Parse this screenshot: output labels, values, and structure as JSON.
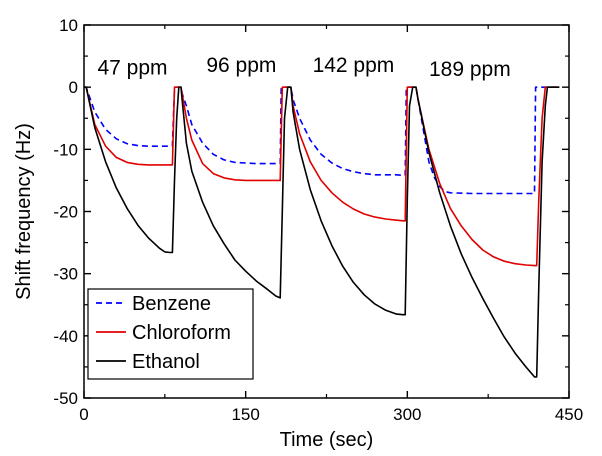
{
  "chart_data": {
    "type": "line",
    "xlabel": "Time (sec)",
    "ylabel": "Shift frequency (Hz)",
    "xlim": [
      0,
      450
    ],
    "ylim": [
      -50,
      10
    ],
    "x_ticks": [
      0,
      150,
      300,
      450
    ],
    "x_minor_ticks": [
      75,
      225,
      375
    ],
    "y_ticks": [
      10,
      0,
      -10,
      -20,
      -30,
      -40,
      -50
    ],
    "y_minor_ticks": [
      5,
      -5,
      -15,
      -25,
      -35,
      -45
    ],
    "grid": false,
    "legend_position": "bottom-left",
    "annotations": [
      {
        "text": "47 ppm",
        "x": 45,
        "y": 2
      },
      {
        "text": "96 ppm",
        "x": 146,
        "y": 2.4
      },
      {
        "text": "142 ppm",
        "x": 250,
        "y": 2.4
      },
      {
        "text": "189 ppm",
        "x": 358,
        "y": 1.8
      }
    ],
    "series": [
      {
        "name": "Benzene",
        "color": "#0000ff",
        "dash": "dashed",
        "points": [
          [
            0,
            0
          ],
          [
            2,
            0
          ],
          [
            10,
            -4
          ],
          [
            20,
            -6.8
          ],
          [
            30,
            -8.3
          ],
          [
            40,
            -9.1
          ],
          [
            50,
            -9.4
          ],
          [
            60,
            -9.5
          ],
          [
            70,
            -9.5
          ],
          [
            80,
            -9.5
          ],
          [
            82,
            -9.5
          ],
          [
            84,
            0
          ],
          [
            88,
            0
          ],
          [
            90,
            0
          ],
          [
            91,
            -1
          ],
          [
            95,
            -3
          ],
          [
            100,
            -6
          ],
          [
            110,
            -9
          ],
          [
            120,
            -10.8
          ],
          [
            130,
            -11.7
          ],
          [
            140,
            -12.1
          ],
          [
            150,
            -12.2
          ],
          [
            160,
            -12.3
          ],
          [
            170,
            -12.3
          ],
          [
            180,
            -12.3
          ],
          [
            182,
            -12.3
          ],
          [
            183,
            0
          ],
          [
            189,
            0
          ],
          [
            190,
            0
          ],
          [
            192,
            0
          ],
          [
            194,
            -2
          ],
          [
            200,
            -5
          ],
          [
            210,
            -8.5
          ],
          [
            220,
            -10.8
          ],
          [
            230,
            -12.2
          ],
          [
            240,
            -13.1
          ],
          [
            250,
            -13.6
          ],
          [
            260,
            -13.9
          ],
          [
            270,
            -14.1
          ],
          [
            280,
            -14.1
          ],
          [
            290,
            -14.1
          ],
          [
            296,
            -14.2
          ],
          [
            298,
            -14.2
          ],
          [
            299,
            0
          ],
          [
            305,
            0
          ],
          [
            308,
            0
          ],
          [
            310,
            -2
          ],
          [
            315,
            -7
          ],
          [
            320,
            -12
          ],
          [
            325,
            -14.5
          ],
          [
            330,
            -16
          ],
          [
            335,
            -16.8
          ],
          [
            340,
            -17
          ],
          [
            360,
            -17.1
          ],
          [
            380,
            -17.1
          ],
          [
            400,
            -17.1
          ],
          [
            415,
            -17.1
          ],
          [
            418,
            -17.1
          ],
          [
            419,
            0
          ],
          [
            425,
            0
          ],
          [
            436,
            0
          ],
          [
            441,
            0
          ]
        ]
      },
      {
        "name": "Chloroform",
        "color": "#e00000",
        "dash": "solid",
        "points": [
          [
            0,
            0
          ],
          [
            2,
            0
          ],
          [
            10,
            -6
          ],
          [
            20,
            -9.5
          ],
          [
            30,
            -11.3
          ],
          [
            40,
            -12.1
          ],
          [
            50,
            -12.4
          ],
          [
            60,
            -12.5
          ],
          [
            70,
            -12.5
          ],
          [
            80,
            -12.5
          ],
          [
            82,
            -12.5
          ],
          [
            84,
            0
          ],
          [
            88,
            0
          ],
          [
            90,
            0
          ],
          [
            91,
            -1
          ],
          [
            95,
            -5
          ],
          [
            100,
            -8.5
          ],
          [
            110,
            -12.3
          ],
          [
            120,
            -13.9
          ],
          [
            130,
            -14.6
          ],
          [
            140,
            -14.9
          ],
          [
            150,
            -15
          ],
          [
            160,
            -15
          ],
          [
            170,
            -15
          ],
          [
            180,
            -15
          ],
          [
            182,
            -15
          ],
          [
            184,
            0
          ],
          [
            189,
            0
          ],
          [
            190,
            0
          ],
          [
            192,
            0
          ],
          [
            194,
            -3
          ],
          [
            200,
            -7.5
          ],
          [
            210,
            -12
          ],
          [
            220,
            -15
          ],
          [
            230,
            -17
          ],
          [
            240,
            -18.5
          ],
          [
            250,
            -19.6
          ],
          [
            260,
            -20.4
          ],
          [
            270,
            -20.9
          ],
          [
            280,
            -21.2
          ],
          [
            290,
            -21.4
          ],
          [
            296,
            -21.5
          ],
          [
            298,
            -21.5
          ],
          [
            300,
            0
          ],
          [
            305,
            0
          ],
          [
            308,
            0
          ],
          [
            310,
            -2
          ],
          [
            320,
            -10
          ],
          [
            330,
            -15.5
          ],
          [
            340,
            -19.5
          ],
          [
            350,
            -22.3
          ],
          [
            360,
            -24.5
          ],
          [
            370,
            -26.2
          ],
          [
            380,
            -27.3
          ],
          [
            390,
            -28
          ],
          [
            400,
            -28.4
          ],
          [
            410,
            -28.6
          ],
          [
            418,
            -28.7
          ],
          [
            420,
            -28.7
          ],
          [
            422,
            -18
          ],
          [
            425,
            -5
          ],
          [
            428,
            0
          ],
          [
            436,
            0
          ],
          [
            441,
            0
          ]
        ]
      },
      {
        "name": "Ethanol",
        "color": "#000000",
        "dash": "solid",
        "points": [
          [
            0,
            0
          ],
          [
            2,
            0
          ],
          [
            10,
            -6.5
          ],
          [
            20,
            -12
          ],
          [
            30,
            -16.2
          ],
          [
            40,
            -19.5
          ],
          [
            50,
            -22.2
          ],
          [
            60,
            -24.3
          ],
          [
            70,
            -25.9
          ],
          [
            75,
            -26.5
          ],
          [
            80,
            -26.6
          ],
          [
            82,
            -26.6
          ],
          [
            84,
            -15
          ],
          [
            86,
            -5
          ],
          [
            88,
            0
          ],
          [
            90,
            0
          ],
          [
            91,
            -2
          ],
          [
            95,
            -9
          ],
          [
            100,
            -13.5
          ],
          [
            110,
            -18.5
          ],
          [
            120,
            -22.3
          ],
          [
            130,
            -25.2
          ],
          [
            140,
            -27.8
          ],
          [
            150,
            -29.6
          ],
          [
            160,
            -31.2
          ],
          [
            170,
            -32.5
          ],
          [
            178,
            -33.6
          ],
          [
            182,
            -33.9
          ],
          [
            184,
            -20
          ],
          [
            186,
            -5
          ],
          [
            189,
            0
          ],
          [
            190,
            0
          ],
          [
            192,
            0
          ],
          [
            194,
            -4
          ],
          [
            200,
            -10
          ],
          [
            210,
            -16.5
          ],
          [
            220,
            -21.5
          ],
          [
            230,
            -25.5
          ],
          [
            240,
            -28.8
          ],
          [
            250,
            -31.4
          ],
          [
            260,
            -33.4
          ],
          [
            270,
            -34.9
          ],
          [
            280,
            -35.9
          ],
          [
            290,
            -36.5
          ],
          [
            296,
            -36.6
          ],
          [
            298,
            -36.6
          ],
          [
            300,
            -18
          ],
          [
            302,
            -3
          ],
          [
            305,
            0
          ],
          [
            308,
            0
          ],
          [
            310,
            -2
          ],
          [
            320,
            -10.5
          ],
          [
            330,
            -17
          ],
          [
            340,
            -22.3
          ],
          [
            350,
            -26.8
          ],
          [
            360,
            -30.6
          ],
          [
            370,
            -34
          ],
          [
            380,
            -37.2
          ],
          [
            390,
            -40.2
          ],
          [
            400,
            -42.8
          ],
          [
            410,
            -45
          ],
          [
            418,
            -46.6
          ],
          [
            420,
            -46.6
          ],
          [
            422,
            -32
          ],
          [
            425,
            -12
          ],
          [
            428,
            -3
          ],
          [
            430,
            0
          ],
          [
            436,
            0
          ],
          [
            441,
            0
          ]
        ]
      }
    ]
  }
}
